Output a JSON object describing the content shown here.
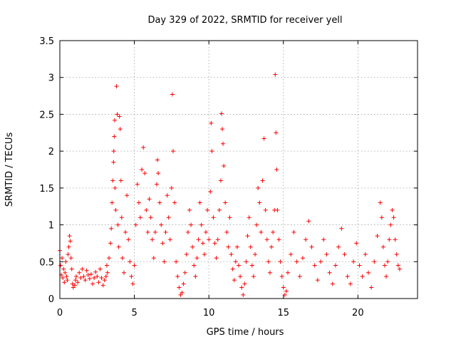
{
  "chart_data": {
    "type": "scatter",
    "title": "Day 329 of 2022, SRMTID for receiver yell",
    "xlabel": "GPS time / hours",
    "ylabel": "SRMTID / TECUs",
    "xlim": [
      0,
      24
    ],
    "ylim": [
      0,
      3.5
    ],
    "grid": true,
    "marker": "+",
    "x_ticks": [
      0,
      5,
      10,
      15,
      20
    ],
    "x_tick_labels": [
      "0",
      "5",
      "10",
      "15",
      "20"
    ],
    "y_ticks": [
      0,
      0.5,
      1,
      1.5,
      2,
      2.5,
      3,
      3.5
    ],
    "y_tick_labels": [
      "0",
      "0.5",
      "1",
      "1.5",
      "2",
      "2.5",
      "3",
      "3.5"
    ],
    "colors": {
      "series": "#ff0000",
      "grid": "#a0a0a0",
      "axis": "#000000"
    },
    "series": [
      {
        "name": "SRMTID",
        "color": "#ff0000",
        "points": [
          [
            0.0,
            0.65
          ],
          [
            0.05,
            0.45
          ],
          [
            0.1,
            0.32
          ],
          [
            0.15,
            0.55
          ],
          [
            0.2,
            0.28
          ],
          [
            0.25,
            0.4
          ],
          [
            0.3,
            0.22
          ],
          [
            0.35,
            0.35
          ],
          [
            0.4,
            0.5
          ],
          [
            0.45,
            0.3
          ],
          [
            0.5,
            0.25
          ],
          [
            0.55,
            0.6
          ],
          [
            0.6,
            0.7
          ],
          [
            0.65,
            0.85
          ],
          [
            0.7,
            0.78
          ],
          [
            0.75,
            0.55
          ],
          [
            0.8,
            0.4
          ],
          [
            0.85,
            0.2
          ],
          [
            0.9,
            0.15
          ],
          [
            1.0,
            0.18
          ],
          [
            1.05,
            0.25
          ],
          [
            1.1,
            0.3
          ],
          [
            1.2,
            0.22
          ],
          [
            1.3,
            0.35
          ],
          [
            1.4,
            0.28
          ],
          [
            1.5,
            0.4
          ],
          [
            1.6,
            0.3
          ],
          [
            1.7,
            0.25
          ],
          [
            1.8,
            0.38
          ],
          [
            1.9,
            0.32
          ],
          [
            2.0,
            0.27
          ],
          [
            2.1,
            0.33
          ],
          [
            2.2,
            0.2
          ],
          [
            2.3,
            0.28
          ],
          [
            2.4,
            0.36
          ],
          [
            2.5,
            0.3
          ],
          [
            2.6,
            0.22
          ],
          [
            2.7,
            0.4
          ],
          [
            2.8,
            0.28
          ],
          [
            2.9,
            0.18
          ],
          [
            3.0,
            0.25
          ],
          [
            3.1,
            0.3
          ],
          [
            3.15,
            0.45
          ],
          [
            3.2,
            0.35
          ],
          [
            3.3,
            0.55
          ],
          [
            3.4,
            0.75
          ],
          [
            3.45,
            0.95
          ],
          [
            3.5,
            1.3
          ],
          [
            3.55,
            1.6
          ],
          [
            3.6,
            1.85
          ],
          [
            3.62,
            2.0
          ],
          [
            3.65,
            2.2
          ],
          [
            3.68,
            2.42
          ],
          [
            3.7,
            1.5
          ],
          [
            3.75,
            1.2
          ],
          [
            3.8,
            2.88
          ],
          [
            3.85,
            2.5
          ],
          [
            3.9,
            1.0
          ],
          [
            3.95,
            0.7
          ],
          [
            4.0,
            2.47
          ],
          [
            4.05,
            2.3
          ],
          [
            4.1,
            1.6
          ],
          [
            4.15,
            1.1
          ],
          [
            4.2,
            0.55
          ],
          [
            4.3,
            0.35
          ],
          [
            4.4,
            0.9
          ],
          [
            4.5,
            1.4
          ],
          [
            4.6,
            0.8
          ],
          [
            4.7,
            0.5
          ],
          [
            4.8,
            0.3
          ],
          [
            4.9,
            0.2
          ],
          [
            5.0,
            0.45
          ],
          [
            5.1,
            1.0
          ],
          [
            5.2,
            1.55
          ],
          [
            5.3,
            1.3
          ],
          [
            5.4,
            1.1
          ],
          [
            5.5,
            1.75
          ],
          [
            5.6,
            2.05
          ],
          [
            5.7,
            1.7
          ],
          [
            5.8,
            1.2
          ],
          [
            5.9,
            0.9
          ],
          [
            6.0,
            1.35
          ],
          [
            6.1,
            1.1
          ],
          [
            6.2,
            0.8
          ],
          [
            6.3,
            0.55
          ],
          [
            6.4,
            0.9
          ],
          [
            6.5,
            1.55
          ],
          [
            6.55,
            1.88
          ],
          [
            6.6,
            1.7
          ],
          [
            6.7,
            1.3
          ],
          [
            6.8,
            1.0
          ],
          [
            6.9,
            0.75
          ],
          [
            7.0,
            0.5
          ],
          [
            7.1,
            0.9
          ],
          [
            7.2,
            1.4
          ],
          [
            7.3,
            1.1
          ],
          [
            7.4,
            0.8
          ],
          [
            7.5,
            1.5
          ],
          [
            7.55,
            2.77
          ],
          [
            7.6,
            2.0
          ],
          [
            7.7,
            1.3
          ],
          [
            7.8,
            0.5
          ],
          [
            7.9,
            0.3
          ],
          [
            8.0,
            0.15
          ],
          [
            8.1,
            0.05
          ],
          [
            8.2,
            0.08
          ],
          [
            8.3,
            0.2
          ],
          [
            8.4,
            0.35
          ],
          [
            8.5,
            0.6
          ],
          [
            8.6,
            0.9
          ],
          [
            8.7,
            1.2
          ],
          [
            8.8,
            1.0
          ],
          [
            8.9,
            0.7
          ],
          [
            9.0,
            0.45
          ],
          [
            9.1,
            0.3
          ],
          [
            9.2,
            0.55
          ],
          [
            9.3,
            0.8
          ],
          [
            9.4,
            1.3
          ],
          [
            9.5,
            1.0
          ],
          [
            9.6,
            0.75
          ],
          [
            9.7,
            0.6
          ],
          [
            9.8,
            0.9
          ],
          [
            9.9,
            1.2
          ],
          [
            10.0,
            0.8
          ],
          [
            10.1,
            1.45
          ],
          [
            10.15,
            2.38
          ],
          [
            10.2,
            2.0
          ],
          [
            10.3,
            1.1
          ],
          [
            10.4,
            0.75
          ],
          [
            10.5,
            0.55
          ],
          [
            10.6,
            0.8
          ],
          [
            10.7,
            1.2
          ],
          [
            10.8,
            1.6
          ],
          [
            10.85,
            2.51
          ],
          [
            10.9,
            2.3
          ],
          [
            10.95,
            2.1
          ],
          [
            11.0,
            1.8
          ],
          [
            11.1,
            1.3
          ],
          [
            11.2,
            0.9
          ],
          [
            11.3,
            0.7
          ],
          [
            11.4,
            1.1
          ],
          [
            11.5,
            0.6
          ],
          [
            11.6,
            0.4
          ],
          [
            11.7,
            0.25
          ],
          [
            11.8,
            0.5
          ],
          [
            11.9,
            0.7
          ],
          [
            12.0,
            0.45
          ],
          [
            12.1,
            0.3
          ],
          [
            12.2,
            0.15
          ],
          [
            12.3,
            0.05
          ],
          [
            12.4,
            0.2
          ],
          [
            12.5,
            0.5
          ],
          [
            12.6,
            0.85
          ],
          [
            12.7,
            1.1
          ],
          [
            12.8,
            0.7
          ],
          [
            12.9,
            0.45
          ],
          [
            13.0,
            0.3
          ],
          [
            13.1,
            0.6
          ],
          [
            13.2,
            1.0
          ],
          [
            13.3,
            1.5
          ],
          [
            13.4,
            1.3
          ],
          [
            13.5,
            0.9
          ],
          [
            13.6,
            1.6
          ],
          [
            13.7,
            2.17
          ],
          [
            13.8,
            1.2
          ],
          [
            13.9,
            0.8
          ],
          [
            14.0,
            0.5
          ],
          [
            14.1,
            0.35
          ],
          [
            14.2,
            0.7
          ],
          [
            14.3,
            0.9
          ],
          [
            14.4,
            1.2
          ],
          [
            14.45,
            3.04
          ],
          [
            14.5,
            2.25
          ],
          [
            14.55,
            1.75
          ],
          [
            14.6,
            1.2
          ],
          [
            14.7,
            0.8
          ],
          [
            14.8,
            0.5
          ],
          [
            14.9,
            0.3
          ],
          [
            15.0,
            0.15
          ],
          [
            15.1,
            0.05
          ],
          [
            15.2,
            0.1
          ],
          [
            15.3,
            0.35
          ],
          [
            15.5,
            0.6
          ],
          [
            15.7,
            0.9
          ],
          [
            15.9,
            0.5
          ],
          [
            16.1,
            0.3
          ],
          [
            16.3,
            0.55
          ],
          [
            16.5,
            0.8
          ],
          [
            16.7,
            1.05
          ],
          [
            16.9,
            0.7
          ],
          [
            17.1,
            0.45
          ],
          [
            17.3,
            0.25
          ],
          [
            17.5,
            0.5
          ],
          [
            17.7,
            0.8
          ],
          [
            17.9,
            0.6
          ],
          [
            18.1,
            0.35
          ],
          [
            18.3,
            0.2
          ],
          [
            18.5,
            0.45
          ],
          [
            18.7,
            0.7
          ],
          [
            18.9,
            0.95
          ],
          [
            19.1,
            0.6
          ],
          [
            19.3,
            0.3
          ],
          [
            19.5,
            0.2
          ],
          [
            19.7,
            0.5
          ],
          [
            19.9,
            0.75
          ],
          [
            20.1,
            0.45
          ],
          [
            20.3,
            0.3
          ],
          [
            20.5,
            0.6
          ],
          [
            20.7,
            0.35
          ],
          [
            20.9,
            0.15
          ],
          [
            21.1,
            0.5
          ],
          [
            21.3,
            0.85
          ],
          [
            21.5,
            1.3
          ],
          [
            21.6,
            1.1
          ],
          [
            21.7,
            0.7
          ],
          [
            21.8,
            0.45
          ],
          [
            21.9,
            0.3
          ],
          [
            22.0,
            0.5
          ],
          [
            22.1,
            0.8
          ],
          [
            22.2,
            1.0
          ],
          [
            22.3,
            1.2
          ],
          [
            22.4,
            1.1
          ],
          [
            22.5,
            0.8
          ],
          [
            22.6,
            0.6
          ],
          [
            22.7,
            0.45
          ],
          [
            22.8,
            0.4
          ]
        ]
      }
    ]
  }
}
